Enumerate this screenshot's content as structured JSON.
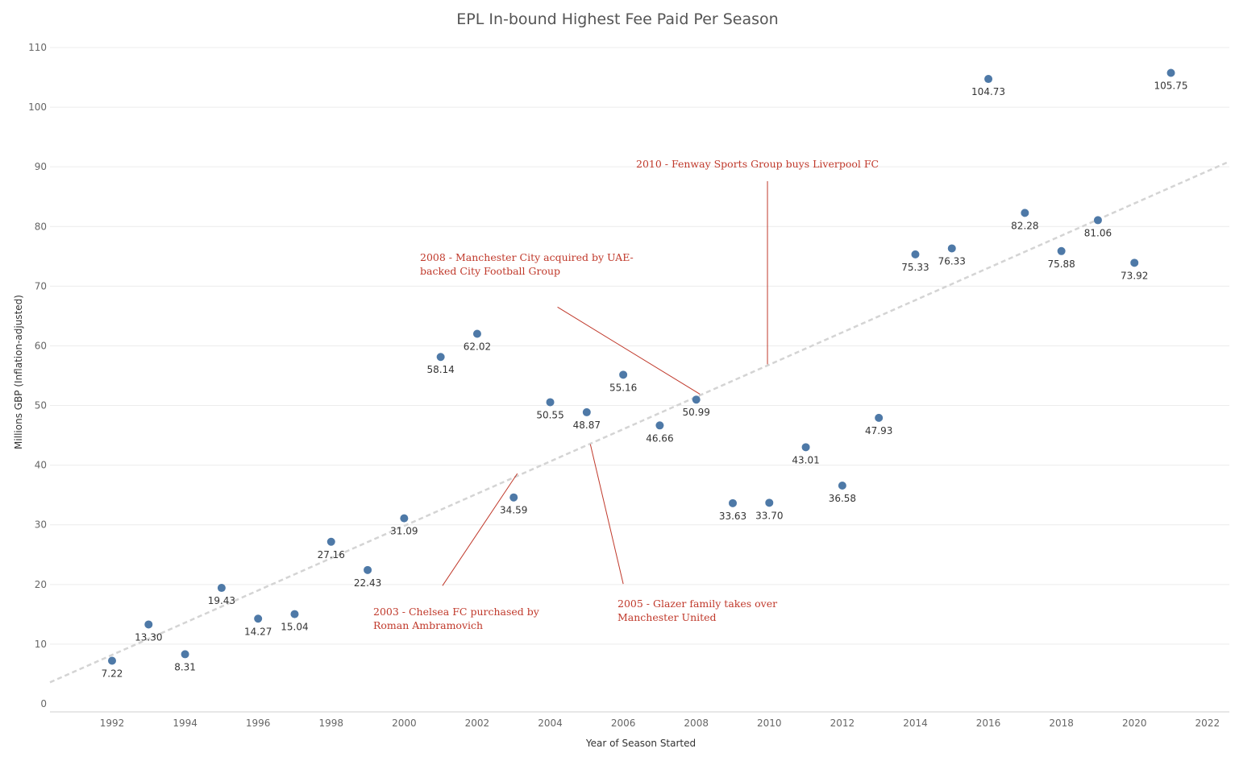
{
  "chart_data": {
    "type": "scatter",
    "title": "EPL In-bound Highest Fee Paid Per Season",
    "xlabel": "Year of Season Started",
    "ylabel": "Millions GBP (Inflation-adjusted)",
    "xlim": [
      1990.3,
      2022.6
    ],
    "ylim": [
      0,
      110
    ],
    "x_ticks": [
      1992,
      1994,
      1996,
      1998,
      2000,
      2002,
      2004,
      2006,
      2008,
      2010,
      2012,
      2014,
      2016,
      2018,
      2020,
      2022
    ],
    "y_ticks": [
      0,
      10,
      20,
      30,
      40,
      50,
      60,
      70,
      80,
      90,
      100,
      110
    ],
    "grid": "horizontal",
    "colors": {
      "point": "#4e79a7",
      "trend": "#d4d4d4",
      "annotation": "#c0392b",
      "grid": "#ececec"
    },
    "series": [
      {
        "points": [
          {
            "x": 1992,
            "y": 7.22,
            "label": "7.22"
          },
          {
            "x": 1993,
            "y": 13.3,
            "label": "13.30"
          },
          {
            "x": 1994,
            "y": 8.31,
            "label": "8.31"
          },
          {
            "x": 1995,
            "y": 19.43,
            "label": "19.43"
          },
          {
            "x": 1996,
            "y": 14.27,
            "label": "14.27"
          },
          {
            "x": 1997,
            "y": 15.04,
            "label": "15.04"
          },
          {
            "x": 1998,
            "y": 27.16,
            "label": "27.16"
          },
          {
            "x": 1999,
            "y": 22.43,
            "label": "22.43"
          },
          {
            "x": 2000,
            "y": 31.09,
            "label": "31.09"
          },
          {
            "x": 2001,
            "y": 58.14,
            "label": "58.14"
          },
          {
            "x": 2002,
            "y": 62.02,
            "label": "62.02"
          },
          {
            "x": 2003,
            "y": 34.59,
            "label": "34.59"
          },
          {
            "x": 2004,
            "y": 50.55,
            "label": "50.55"
          },
          {
            "x": 2005,
            "y": 48.87,
            "label": "48.87"
          },
          {
            "x": 2006,
            "y": 55.16,
            "label": "55.16"
          },
          {
            "x": 2007,
            "y": 46.66,
            "label": "46.66"
          },
          {
            "x": 2008,
            "y": 50.99,
            "label": "50.99"
          },
          {
            "x": 2009,
            "y": 33.63,
            "label": "33.63"
          },
          {
            "x": 2010,
            "y": 33.7,
            "label": "33.70"
          },
          {
            "x": 2011,
            "y": 43.01,
            "label": "43.01"
          },
          {
            "x": 2012,
            "y": 36.58,
            "label": "36.58"
          },
          {
            "x": 2013,
            "y": 47.93,
            "label": "47.93"
          },
          {
            "x": 2014,
            "y": 75.33,
            "label": "75.33"
          },
          {
            "x": 2015,
            "y": 76.33,
            "label": "76.33"
          },
          {
            "x": 2016,
            "y": 104.73,
            "label": "104.73"
          },
          {
            "x": 2017,
            "y": 82.28,
            "label": "82.28"
          },
          {
            "x": 2018,
            "y": 75.88,
            "label": "75.88"
          },
          {
            "x": 2019,
            "y": 81.06,
            "label": "81.06"
          },
          {
            "x": 2020,
            "y": 73.92,
            "label": "73.92"
          },
          {
            "x": 2021,
            "y": 105.75,
            "label": "105.75"
          }
        ]
      }
    ],
    "trendline": {
      "style": "dashed",
      "from": {
        "x": 1990.3,
        "y": 3.6
      },
      "to": {
        "x": 2022.6,
        "y": 90.9
      }
    },
    "annotations": [
      {
        "lines": [
          "2003 - Chelsea FC purchased by",
          "Roman Ambramovich"
        ],
        "pointer": {
          "x": 2003.1,
          "y": 38.6
        },
        "pointer_from": {
          "x": 2001.05,
          "y": 19.8
        }
      },
      {
        "lines": [
          "2005 - Glazer family takes over",
          "Manchester United"
        ],
        "pointer": {
          "x": 2005.1,
          "y": 43.5
        },
        "pointer_from": {
          "x": 2006.0,
          "y": 20.1
        }
      },
      {
        "lines": [
          "2008 - Manchester City acquired by UAE-",
          "backed City Football Group"
        ],
        "pointer": {
          "x": 2008.1,
          "y": 51.9
        },
        "pointer_from": {
          "x": 2004.2,
          "y": 66.5
        }
      },
      {
        "lines": [
          "2010 - Fenway Sports Group buys Liverpool FC"
        ],
        "pointer": {
          "x": 2009.95,
          "y": 56.9
        },
        "pointer_from": {
          "x": 2009.95,
          "y": 87.6
        }
      }
    ]
  }
}
